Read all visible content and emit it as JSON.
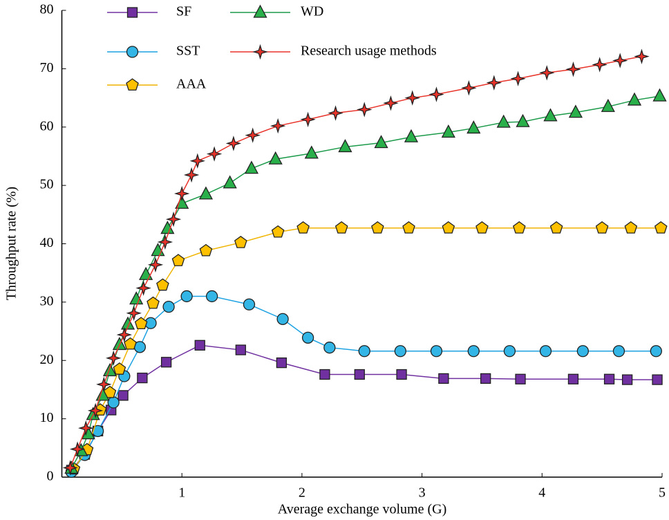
{
  "chart_data": {
    "type": "line",
    "xlabel": "Average exchange volume (G)",
    "ylabel": "Throughput rate (%)",
    "xlim": [
      0,
      5
    ],
    "ylim": [
      0,
      80
    ],
    "xticks": [
      1,
      2,
      3,
      4,
      5
    ],
    "yticks": [
      0,
      10,
      20,
      30,
      40,
      50,
      60,
      70,
      80
    ],
    "series": [
      {
        "name": "SF",
        "color": "#7030a0",
        "fill": "#7030a0",
        "marker": "square",
        "x": [
          0.08,
          0.19,
          0.3,
          0.41,
          0.51,
          0.67,
          0.87,
          1.15,
          1.49,
          1.83,
          2.19,
          2.48,
          2.83,
          3.18,
          3.53,
          3.82,
          4.26,
          4.56,
          4.71,
          4.96
        ],
        "values": [
          1.2,
          3.9,
          7.9,
          11.5,
          14,
          17,
          19.7,
          22.6,
          21.8,
          19.6,
          17.6,
          17.6,
          17.6,
          16.9,
          16.9,
          16.8,
          16.8,
          16.8,
          16.7,
          16.7
        ]
      },
      {
        "name": "SST",
        "color": "#1ba1e2",
        "fill": "#33b5e5",
        "marker": "circle",
        "x": [
          0.08,
          0.19,
          0.3,
          0.43,
          0.52,
          0.65,
          0.74,
          0.89,
          1.04,
          1.25,
          1.56,
          1.84,
          2.05,
          2.23,
          2.52,
          2.82,
          3.12,
          3.43,
          3.73,
          4.03,
          4.34,
          4.64,
          4.95
        ],
        "values": [
          0.9,
          3.8,
          7.9,
          12.8,
          17.3,
          22.3,
          26.4,
          29.2,
          31,
          31,
          29.6,
          27.1,
          23.9,
          22.2,
          21.6,
          21.6,
          21.6,
          21.6,
          21.6,
          21.6,
          21.6,
          21.6,
          21.6
        ]
      },
      {
        "name": "AAA",
        "color": "#f0b400",
        "fill": "#ffc000",
        "marker": "pentagon",
        "x": [
          0.1,
          0.21,
          0.32,
          0.4,
          0.48,
          0.57,
          0.66,
          0.76,
          0.84,
          0.97,
          1.2,
          1.49,
          1.8,
          2.01,
          2.33,
          2.63,
          2.89,
          3.22,
          3.5,
          3.81,
          4.12,
          4.5,
          4.74,
          4.99
        ],
        "values": [
          1.4,
          4.7,
          11.5,
          14.5,
          18.5,
          22.8,
          26.3,
          29.8,
          32.9,
          37.1,
          38.8,
          40.2,
          42,
          42.7,
          42.7,
          42.7,
          42.7,
          42.7,
          42.7,
          42.7,
          42.7,
          42.7,
          42.7,
          42.7
        ]
      },
      {
        "name": "WD",
        "color": "#1a9a48",
        "fill": "#2ab04a",
        "marker": "triangle",
        "x": [
          0.08,
          0.16,
          0.22,
          0.26,
          0.34,
          0.4,
          0.48,
          0.55,
          0.62,
          0.7,
          0.8,
          0.88,
          1.0,
          1.2,
          1.4,
          1.58,
          1.78,
          2.08,
          2.36,
          2.66,
          2.91,
          3.22,
          3.43,
          3.68,
          3.84,
          4.07,
          4.28,
          4.55,
          4.77,
          4.98
        ],
        "values": [
          1.5,
          4.5,
          7.4,
          10.7,
          14,
          18.2,
          22.7,
          26.2,
          30.5,
          34.7,
          38.8,
          42.6,
          46.9,
          48.5,
          50.4,
          52.9,
          54.5,
          55.5,
          56.6,
          57.3,
          58.3,
          59.1,
          59.8,
          60.8,
          60.9,
          61.9,
          62.5,
          63.5,
          64.6,
          65.3
        ]
      },
      {
        "name": "Research usage methods",
        "color": "#e8332a",
        "fill": "#e8332a",
        "marker": "star",
        "x": [
          0.07,
          0.13,
          0.2,
          0.28,
          0.35,
          0.43,
          0.52,
          0.6,
          0.68,
          0.78,
          0.86,
          0.93,
          1.0,
          1.08,
          1.13,
          1.27,
          1.43,
          1.59,
          1.8,
          2.05,
          2.28,
          2.52,
          2.74,
          2.92,
          3.12,
          3.39,
          3.6,
          3.8,
          4.04,
          4.26,
          4.48,
          4.65,
          4.83
        ],
        "values": [
          1.6,
          4.8,
          8.4,
          11.4,
          15.9,
          20.4,
          24.4,
          28.1,
          32.4,
          36.4,
          40.3,
          44.2,
          48.6,
          51.8,
          54.2,
          55.4,
          57.2,
          58.6,
          60.2,
          61.3,
          62.4,
          63,
          64.1,
          65,
          65.6,
          66.7,
          67.6,
          68.3,
          69.3,
          69.9,
          70.7,
          71.4,
          72.1
        ]
      }
    ]
  }
}
